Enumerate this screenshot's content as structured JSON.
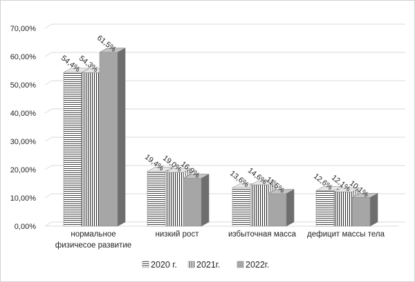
{
  "chart_data": {
    "type": "bar",
    "style": "3d-clustered-column",
    "categories": [
      [
        "нормальное",
        "физичесое развитие"
      ],
      [
        "низкий  рост"
      ],
      [
        "избыточная масса"
      ],
      [
        "дефицит массы тела"
      ]
    ],
    "series": [
      {
        "name": "2020 г.",
        "values": [
          54.4,
          19.4,
          13.6,
          12.6
        ],
        "labels": [
          "54,4%",
          "19,4%",
          "13,6%",
          "12,6%"
        ],
        "pattern": "horizontal-lines"
      },
      {
        "name": "2021г.",
        "values": [
          54.3,
          19.0,
          14.6,
          12.1
        ],
        "labels": [
          "54,3%",
          "19,0%",
          "14,6%",
          "12,1%"
        ],
        "pattern": "vertical-lines"
      },
      {
        "name": "2022г.",
        "values": [
          61.5,
          16.9,
          11.5,
          10.1
        ],
        "labels": [
          "61,5%",
          "16,9%",
          "11,5%",
          "10,1%"
        ],
        "pattern": "solid-gray"
      }
    ],
    "yticks": [
      "0,00%",
      "10,00%",
      "20,00%",
      "30,00%",
      "40,00%",
      "50,00%",
      "60,00%",
      "70,00%"
    ],
    "ylim": [
      0,
      70
    ],
    "grid": true,
    "legend_position": "bottom",
    "colors": {
      "solid": "#a6a6a6",
      "solid_side": "#6e6e6e",
      "solid_top": "#c4c4c4",
      "line": "#2b2b2b",
      "grid": "#d9d9d9"
    }
  }
}
